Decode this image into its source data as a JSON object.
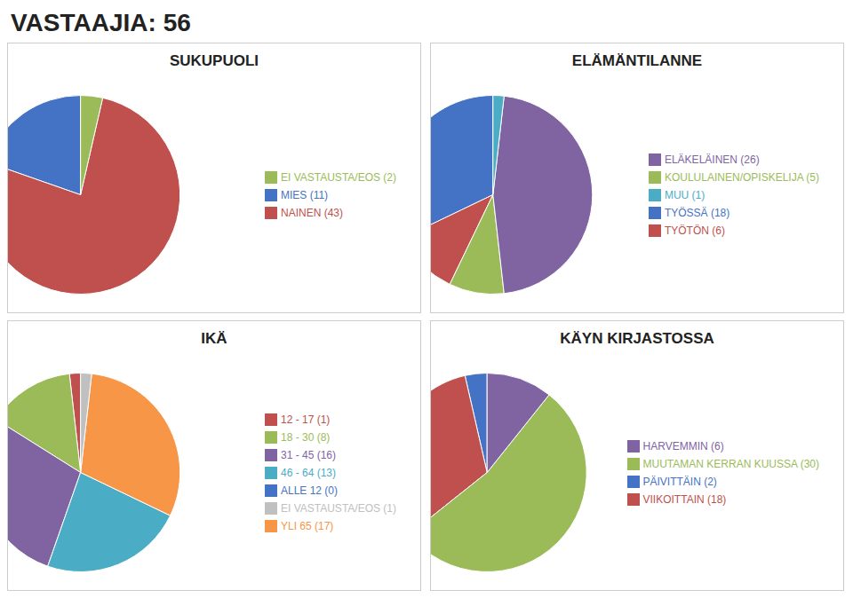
{
  "title": "VASTAAJIA: 56",
  "chart_data": [
    {
      "type": "pie",
      "title": "SUKUPUOLI",
      "categories": [
        "MIES (11)",
        "NAINEN (43)",
        "EI VASTAUSTA/EOS (2)"
      ],
      "values": [
        11,
        43,
        2
      ],
      "colors": [
        "#4472C4",
        "#C0504D",
        "#9BBB59"
      ],
      "legend": "right"
    },
    {
      "type": "pie",
      "title": "ELÄMÄNTILANNE",
      "categories": [
        "TYÖSSÄ (18)",
        "TYÖTÖN (6)",
        "KOULULAINEN/OPISKELIJA (5)",
        "ELÄKELÄINEN (26)",
        "MUU (1)"
      ],
      "values": [
        18,
        6,
        5,
        26,
        1
      ],
      "colors": [
        "#4472C4",
        "#C0504D",
        "#9BBB59",
        "#8064A2",
        "#4BACC6"
      ],
      "legend": "right"
    },
    {
      "type": "pie",
      "title": "IKÄ",
      "categories": [
        "ALLE 12 (0)",
        "12 - 17  (1)",
        "18 - 30 (8)",
        "31 - 45 (16)",
        "46 - 64 (13)",
        "YLI 65 (17)",
        "EI VASTAUSTA/EOS  (1)"
      ],
      "values": [
        0.001,
        1,
        8,
        16,
        13,
        17,
        1
      ],
      "colors": [
        "#4472C4",
        "#C0504D",
        "#9BBB59",
        "#8064A2",
        "#4BACC6",
        "#F79646",
        "#C0C0C0"
      ],
      "legend": "right"
    },
    {
      "type": "pie",
      "title": "KÄYN KIRJASTOSSA",
      "categories": [
        "PÄIVITTÄIN (2)",
        "VIIKOITTAIN (18)",
        "MUUTAMAN KERRAN KUUSSA (30)",
        "HARVEMMIN (6)"
      ],
      "values": [
        2,
        18,
        30,
        6
      ],
      "colors": [
        "#4472C4",
        "#C0504D",
        "#9BBB59",
        "#8064A2"
      ],
      "legend": "right"
    }
  ]
}
